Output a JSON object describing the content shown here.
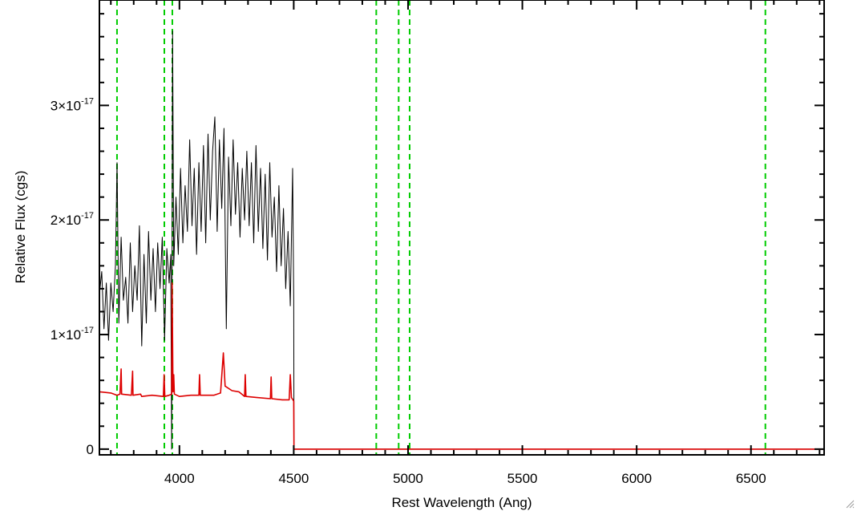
{
  "chart_data": {
    "type": "line",
    "title": "",
    "xlabel": "Rest Wavelength (Ang)",
    "ylabel": "Relative Flux (cgs)",
    "xlim": [
      3650,
      6820
    ],
    "ylim": [
      -5e-19,
      3.92e-17
    ],
    "xticks": [
      4000,
      4500,
      5000,
      5500,
      6000,
      6500
    ],
    "xtick_labels": [
      "4000",
      "4500",
      "5000",
      "5500",
      "6000",
      "6500"
    ],
    "yticks": [
      0,
      1e-17,
      2e-17,
      3e-17
    ],
    "ytick_labels": [
      {
        "mantissa": "0",
        "exponent": ""
      },
      {
        "mantissa": "1×10",
        "exponent": "-17"
      },
      {
        "mantissa": "2×10",
        "exponent": "-17"
      },
      {
        "mantissa": "3×10",
        "exponent": "-17"
      }
    ],
    "grid": false,
    "legend": "none",
    "vlines": {
      "color": "#00cc00",
      "style": "dashed",
      "x": [
        3727,
        3934,
        3969,
        4861,
        4959,
        5007,
        6563
      ]
    },
    "series": [
      {
        "color": "#000000",
        "points": [
          [
            3650,
            1.35e-17
          ],
          [
            3660,
            1.55e-17
          ],
          [
            3670,
            1.05e-17
          ],
          [
            3680,
            1.45e-17
          ],
          [
            3690,
            9.5e-18
          ],
          [
            3700,
            1.45e-17
          ],
          [
            3710,
            1.2e-17
          ],
          [
            3720,
            1.6e-17
          ],
          [
            3727,
            2.5e-17
          ],
          [
            3735,
            1.1e-17
          ],
          [
            3745,
            1.85e-17
          ],
          [
            3755,
            1.3e-17
          ],
          [
            3765,
            1.5e-17
          ],
          [
            3775,
            1.1e-17
          ],
          [
            3785,
            1.8e-17
          ],
          [
            3795,
            1.2e-17
          ],
          [
            3805,
            1.6e-17
          ],
          [
            3815,
            1.3e-17
          ],
          [
            3825,
            1.95e-17
          ],
          [
            3835,
            9e-18
          ],
          [
            3845,
            1.7e-17
          ],
          [
            3855,
            1.1e-17
          ],
          [
            3865,
            1.9e-17
          ],
          [
            3875,
            1.3e-17
          ],
          [
            3885,
            1.75e-17
          ],
          [
            3895,
            1.2e-17
          ],
          [
            3905,
            1.8e-17
          ],
          [
            3915,
            1.4e-17
          ],
          [
            3925,
            1.85e-17
          ],
          [
            3935,
            9.5e-18
          ],
          [
            3945,
            1.75e-17
          ],
          [
            3955,
            1.45e-17
          ],
          [
            3962,
            1.7e-17
          ],
          [
            3966,
            0.0
          ],
          [
            3970,
            3.65e-17
          ],
          [
            3975,
            1.6e-17
          ],
          [
            3985,
            2.2e-17
          ],
          [
            3995,
            1.7e-17
          ],
          [
            4005,
            2.45e-17
          ],
          [
            4015,
            1.8e-17
          ],
          [
            4025,
            2.3e-17
          ],
          [
            4035,
            1.9e-17
          ],
          [
            4045,
            2.7e-17
          ],
          [
            4055,
            1.95e-17
          ],
          [
            4065,
            2.45e-17
          ],
          [
            4075,
            1.7e-17
          ],
          [
            4085,
            2.5e-17
          ],
          [
            4095,
            1.9e-17
          ],
          [
            4105,
            2.65e-17
          ],
          [
            4115,
            1.8e-17
          ],
          [
            4125,
            2.75e-17
          ],
          [
            4135,
            2e-17
          ],
          [
            4145,
            2.6e-17
          ],
          [
            4155,
            2.9e-17
          ],
          [
            4165,
            1.9e-17
          ],
          [
            4175,
            2.7e-17
          ],
          [
            4185,
            2.1e-17
          ],
          [
            4195,
            2.8e-17
          ],
          [
            4205,
            1.05e-17
          ],
          [
            4215,
            2.55e-17
          ],
          [
            4225,
            1.95e-17
          ],
          [
            4235,
            2.7e-17
          ],
          [
            4245,
            2.05e-17
          ],
          [
            4255,
            2.5e-17
          ],
          [
            4265,
            1.85e-17
          ],
          [
            4275,
            2.45e-17
          ],
          [
            4285,
            2e-17
          ],
          [
            4295,
            2.6e-17
          ],
          [
            4305,
            1.95e-17
          ],
          [
            4315,
            2.5e-17
          ],
          [
            4325,
            1.8e-17
          ],
          [
            4335,
            2.65e-17
          ],
          [
            4345,
            1.9e-17
          ],
          [
            4355,
            2.45e-17
          ],
          [
            4365,
            1.75e-17
          ],
          [
            4375,
            2.4e-17
          ],
          [
            4385,
            1.65e-17
          ],
          [
            4395,
            2.5e-17
          ],
          [
            4405,
            1.85e-17
          ],
          [
            4415,
            2.2e-17
          ],
          [
            4425,
            1.55e-17
          ],
          [
            4435,
            2.3e-17
          ],
          [
            4445,
            1.6e-17
          ],
          [
            4455,
            2.1e-17
          ],
          [
            4465,
            1.4e-17
          ],
          [
            4475,
            1.9e-17
          ],
          [
            4485,
            1.25e-17
          ],
          [
            4495,
            2.45e-17
          ],
          [
            4500,
            1.3e-17
          ],
          [
            4501,
            0.0
          ],
          [
            6820,
            0.0
          ]
        ]
      },
      {
        "color": "#dd0000",
        "points": [
          [
            3650,
            5e-18
          ],
          [
            3700,
            4.9e-18
          ],
          [
            3727,
            4.7e-18
          ],
          [
            3740,
            4.8e-18
          ],
          [
            3745,
            7e-18
          ],
          [
            3747,
            4.8e-18
          ],
          [
            3790,
            4.7e-18
          ],
          [
            3795,
            6.8e-18
          ],
          [
            3797,
            4.7e-18
          ],
          [
            3830,
            4.8e-18
          ],
          [
            3835,
            4.6e-18
          ],
          [
            3880,
            4.7e-18
          ],
          [
            3930,
            4.6e-18
          ],
          [
            3933,
            6.5e-18
          ],
          [
            3936,
            4.6e-18
          ],
          [
            3955,
            4.7e-18
          ],
          [
            3966,
            4.8e-18
          ],
          [
            3968,
            1.45e-17
          ],
          [
            3972,
            5e-18
          ],
          [
            3975,
            6.5e-18
          ],
          [
            3978,
            4.8e-18
          ],
          [
            4000,
            4.6e-18
          ],
          [
            4050,
            4.7e-18
          ],
          [
            4085,
            4.7e-18
          ],
          [
            4088,
            6.5e-18
          ],
          [
            4091,
            4.7e-18
          ],
          [
            4150,
            4.7e-18
          ],
          [
            4180,
            4.9e-18
          ],
          [
            4192,
            8.4e-18
          ],
          [
            4200,
            5.5e-18
          ],
          [
            4230,
            5.1e-18
          ],
          [
            4260,
            5e-18
          ],
          [
            4285,
            4.6e-18
          ],
          [
            4288,
            6.5e-18
          ],
          [
            4291,
            4.6e-18
          ],
          [
            4340,
            4.5e-18
          ],
          [
            4398,
            4.4e-18
          ],
          [
            4401,
            6.3e-18
          ],
          [
            4404,
            4.4e-18
          ],
          [
            4450,
            4.3e-18
          ],
          [
            4480,
            4.3e-18
          ],
          [
            4485,
            6.5e-18
          ],
          [
            4490,
            4.5e-18
          ],
          [
            4500,
            4.2e-18
          ],
          [
            4501,
            0.0
          ],
          [
            6820,
            0.0
          ]
        ]
      }
    ]
  }
}
